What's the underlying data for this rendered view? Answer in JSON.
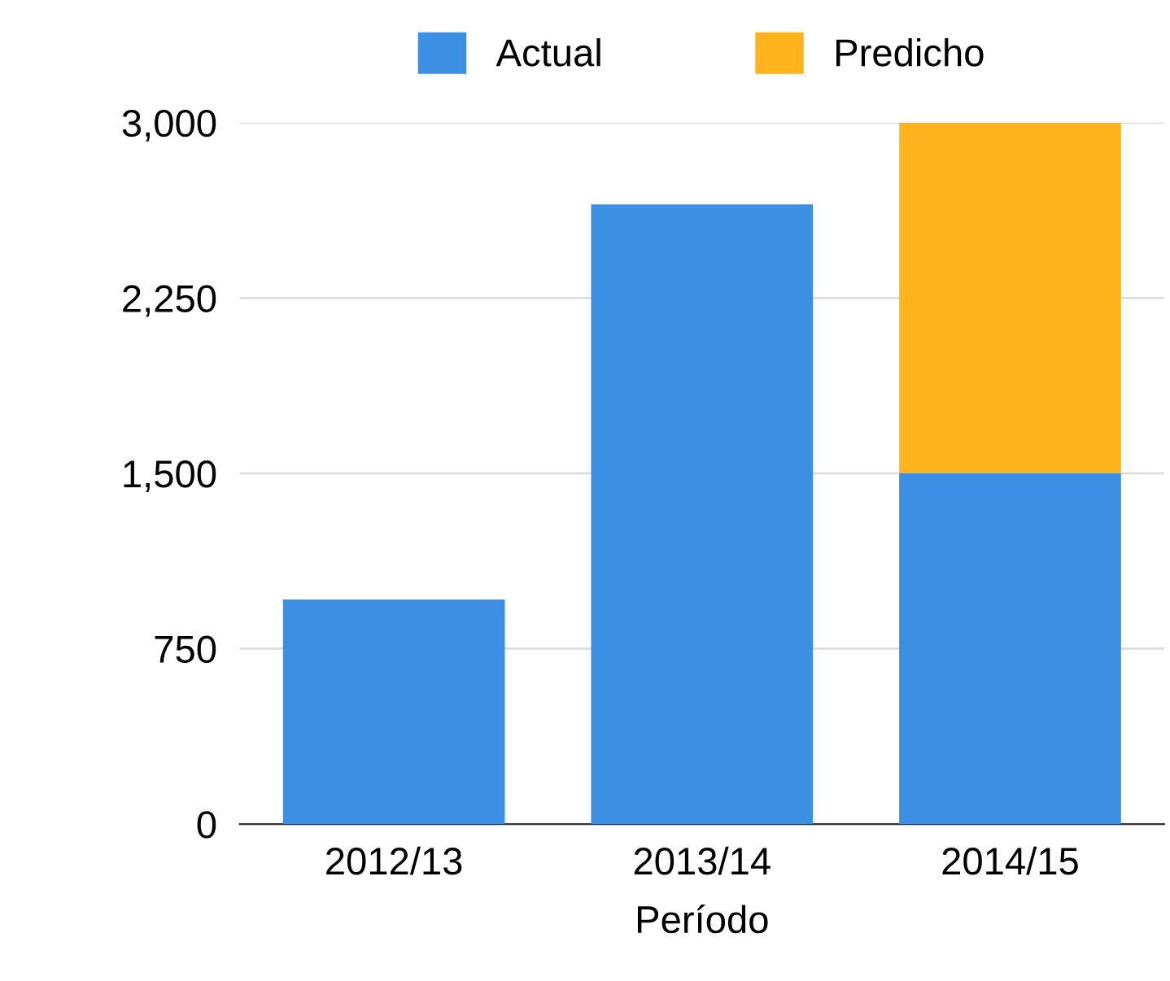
{
  "chart_data": {
    "type": "bar",
    "stacked": true,
    "xlabel": "Período",
    "categories": [
      "2012/13",
      "2013/14",
      "2014/15"
    ],
    "series": [
      {
        "name": "Actual",
        "color": "#3d8fe3",
        "values": [
          960,
          2650,
          1500
        ]
      },
      {
        "name": "Predicho",
        "color": "#ffb41e",
        "values": [
          null,
          null,
          1500
        ]
      }
    ],
    "ylim": [
      0,
      3000
    ],
    "yticks": [
      0,
      {
        "value": 750,
        "label": "750"
      },
      {
        "value": 1500,
        "label": "1,500"
      },
      {
        "value": 2250,
        "label": "2,250"
      },
      {
        "value": 3000,
        "label": "3,000"
      }
    ],
    "grid": "y",
    "legend": "top"
  }
}
